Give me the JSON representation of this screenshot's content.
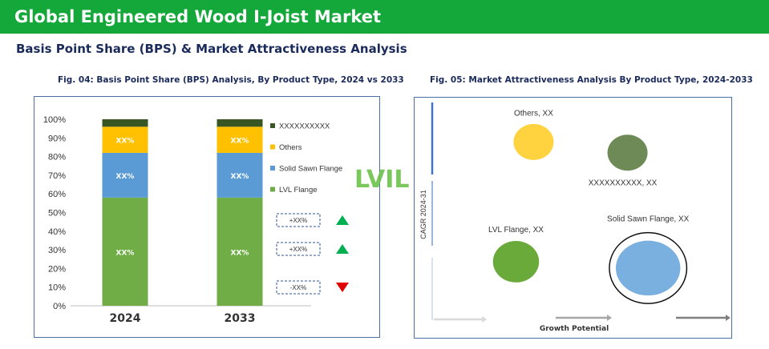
{
  "header": {
    "title": "Global Engineered Wood I-Joist Market",
    "subtitle": "Basis Point Share (BPS) & Market Attractiveness Analysis"
  },
  "logo": {
    "text": "LVIL",
    "color": "#6cc24a"
  },
  "chart_data": [
    {
      "type": "bar",
      "stacked": true,
      "title": "Fig. 04: Basis Point Share (BPS) Analysis, By Product Type, 2024 vs 2033",
      "categories": [
        "2024",
        "2033"
      ],
      "yticks": [
        "0%",
        "10%",
        "20%",
        "30%",
        "40%",
        "50%",
        "60%",
        "70%",
        "80%",
        "90%",
        "100%"
      ],
      "ylim": [
        0,
        100
      ],
      "grid": false,
      "series": [
        {
          "name": "LVL Flange",
          "values": [
            58,
            58
          ],
          "label": "XX%",
          "color": "#70ad47"
        },
        {
          "name": "Solid Sawn Flange",
          "values": [
            24,
            24
          ],
          "label": "XX%",
          "color": "#5b9bd5"
        },
        {
          "name": "Others",
          "values": [
            14,
            14
          ],
          "label": "XX%",
          "color": "#ffc000"
        },
        {
          "name": "XXXXXXXXXX",
          "values": [
            4,
            4
          ],
          "label": "",
          "color": "#375623"
        }
      ],
      "legend_position": "right",
      "bps_changes": [
        {
          "label": "+XX%",
          "direction": "up",
          "color": "#00b050"
        },
        {
          "label": "+XX%",
          "direction": "up",
          "color": "#00b050"
        },
        {
          "label": "-XX%",
          "direction": "down",
          "color": "#e00000"
        }
      ]
    },
    {
      "type": "scatter",
      "subtype": "bubble",
      "title": "Fig. 05: Market Attractiveness Analysis By Product Type, 2024-2033",
      "xlabel": "Growth Potential",
      "ylabel": "CAGR 2024-31",
      "xlim": [
        0,
        10
      ],
      "ylim": [
        0,
        10
      ],
      "points": [
        {
          "name": "Others, XX",
          "x": 3.4,
          "y": 8.3,
          "size": 1.0,
          "color": "#ffd23f",
          "highlight": false
        },
        {
          "name": "XXXXXXXXXX, XX",
          "x": 6.6,
          "y": 7.8,
          "size": 1.0,
          "color": "#6e8b57",
          "highlight": false
        },
        {
          "name": "LVL Flange, XX",
          "x": 2.8,
          "y": 2.7,
          "size": 1.15,
          "color": "#6aaa3a",
          "highlight": false
        },
        {
          "name": "Solid Sawn Flange, XX",
          "x": 7.3,
          "y": 2.4,
          "size": 1.45,
          "color": "#7ab0e0",
          "highlight": true
        }
      ]
    }
  ]
}
